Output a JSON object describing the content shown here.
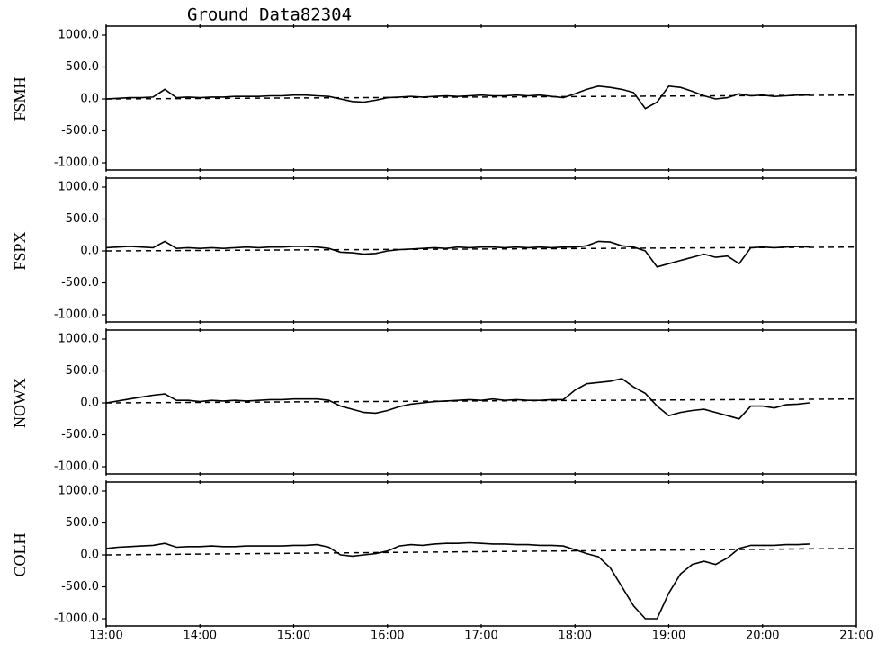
{
  "chart_data": [
    {
      "type": "line",
      "title": "Ground Data82304",
      "ylabel": "FSMH",
      "x": [
        13,
        13.125,
        13.25,
        13.375,
        13.5,
        13.625,
        13.75,
        13.875,
        14,
        14.125,
        14.25,
        14.375,
        14.5,
        14.625,
        14.75,
        14.875,
        15,
        15.125,
        15.25,
        15.375,
        15.5,
        15.625,
        15.75,
        15.875,
        16,
        16.125,
        16.25,
        16.375,
        16.5,
        16.625,
        16.75,
        16.875,
        17,
        17.125,
        17.25,
        17.375,
        17.5,
        17.625,
        17.75,
        17.875,
        18,
        18.125,
        18.25,
        18.375,
        18.5,
        18.625,
        18.75,
        18.875,
        19,
        19.125,
        19.25,
        19.375,
        19.5,
        19.625,
        19.75,
        19.875,
        20,
        20.125,
        20.25,
        20.375,
        20.5
      ],
      "values": [
        0,
        10,
        20,
        20,
        30,
        150,
        20,
        30,
        20,
        30,
        30,
        40,
        40,
        40,
        50,
        50,
        60,
        60,
        50,
        40,
        0,
        -40,
        -50,
        -20,
        20,
        30,
        40,
        30,
        40,
        50,
        40,
        50,
        60,
        50,
        50,
        60,
        50,
        60,
        40,
        20,
        80,
        150,
        200,
        180,
        150,
        100,
        -150,
        -50,
        200,
        180,
        120,
        50,
        0,
        20,
        80,
        50,
        60,
        40,
        50,
        60,
        60
      ],
      "baseline": {
        "x": [
          13,
          21
        ],
        "values": [
          0,
          60
        ]
      },
      "xlim": [
        13,
        21
      ],
      "ylim": [
        -1000,
        1000
      ],
      "yticks": [
        {
          "value": -1000,
          "label": "-1000.0"
        },
        {
          "value": -500,
          "label": "-500.0"
        },
        {
          "value": 0,
          "label": "0.0"
        },
        {
          "value": 500,
          "label": "500.0"
        },
        {
          "value": 1000,
          "label": "1000.0"
        }
      ],
      "color": "#000000"
    },
    {
      "type": "line",
      "ylabel": "FSPX",
      "x": [
        13,
        13.125,
        13.25,
        13.375,
        13.5,
        13.625,
        13.75,
        13.875,
        14,
        14.125,
        14.25,
        14.375,
        14.5,
        14.625,
        14.75,
        14.875,
        15,
        15.125,
        15.25,
        15.375,
        15.5,
        15.625,
        15.75,
        15.875,
        16,
        16.125,
        16.25,
        16.375,
        16.5,
        16.625,
        16.75,
        16.875,
        17,
        17.125,
        17.25,
        17.375,
        17.5,
        17.625,
        17.75,
        17.875,
        18,
        18.125,
        18.25,
        18.375,
        18.5,
        18.625,
        18.75,
        18.875,
        19,
        19.125,
        19.25,
        19.375,
        19.5,
        19.625,
        19.75,
        19.875,
        20,
        20.125,
        20.25,
        20.375,
        20.5
      ],
      "values": [
        50,
        60,
        70,
        60,
        50,
        150,
        40,
        50,
        40,
        50,
        40,
        50,
        60,
        50,
        60,
        60,
        70,
        70,
        60,
        40,
        -20,
        -30,
        -50,
        -40,
        0,
        20,
        30,
        40,
        50,
        40,
        60,
        50,
        60,
        60,
        50,
        60,
        50,
        60,
        50,
        60,
        60,
        80,
        150,
        140,
        80,
        60,
        0,
        -250,
        -200,
        -150,
        -100,
        -50,
        -100,
        -80,
        -200,
        50,
        60,
        50,
        60,
        70,
        60
      ],
      "baseline": {
        "x": [
          13,
          21
        ],
        "values": [
          0,
          60
        ]
      },
      "xlim": [
        13,
        21
      ],
      "ylim": [
        -1000,
        1000
      ],
      "yticks": [
        {
          "value": -1000,
          "label": "-1000.0"
        },
        {
          "value": -500,
          "label": "-500.0"
        },
        {
          "value": 0,
          "label": "0.0"
        },
        {
          "value": 500,
          "label": "500.0"
        },
        {
          "value": 1000,
          "label": "1000.0"
        }
      ],
      "color": "#000000"
    },
    {
      "type": "line",
      "ylabel": "NOWX",
      "x": [
        13,
        13.125,
        13.25,
        13.375,
        13.5,
        13.625,
        13.75,
        13.875,
        14,
        14.125,
        14.25,
        14.375,
        14.5,
        14.625,
        14.75,
        14.875,
        15,
        15.125,
        15.25,
        15.375,
        15.5,
        15.625,
        15.75,
        15.875,
        16,
        16.125,
        16.25,
        16.375,
        16.5,
        16.625,
        16.75,
        16.875,
        17,
        17.125,
        17.25,
        17.375,
        17.5,
        17.625,
        17.75,
        17.875,
        18,
        18.125,
        18.25,
        18.375,
        18.5,
        18.625,
        18.75,
        18.875,
        19,
        19.125,
        19.25,
        19.375,
        19.5,
        19.625,
        19.75,
        19.875,
        20,
        20.125,
        20.25,
        20.375,
        20.5
      ],
      "values": [
        0,
        30,
        60,
        90,
        120,
        140,
        40,
        40,
        20,
        40,
        30,
        40,
        30,
        40,
        50,
        50,
        60,
        60,
        60,
        40,
        -50,
        -100,
        -150,
        -160,
        -120,
        -60,
        -20,
        0,
        20,
        30,
        40,
        50,
        40,
        60,
        40,
        50,
        40,
        40,
        50,
        50,
        200,
        300,
        320,
        340,
        380,
        250,
        150,
        -50,
        -200,
        -150,
        -120,
        -100,
        -150,
        -200,
        -250,
        -50,
        -50,
        -80,
        -30,
        -20,
        0
      ],
      "baseline": {
        "x": [
          13,
          21
        ],
        "values": [
          0,
          60
        ]
      },
      "xlim": [
        13,
        21
      ],
      "ylim": [
        -1000,
        1000
      ],
      "yticks": [
        {
          "value": -1000,
          "label": "-1000.0"
        },
        {
          "value": -500,
          "label": "-500.0"
        },
        {
          "value": 0,
          "label": "0.0"
        },
        {
          "value": 500,
          "label": "500.0"
        },
        {
          "value": 1000,
          "label": "1000.0"
        }
      ],
      "color": "#000000"
    },
    {
      "type": "line",
      "ylabel": "COLH",
      "x": [
        13,
        13.125,
        13.25,
        13.375,
        13.5,
        13.625,
        13.75,
        13.875,
        14,
        14.125,
        14.25,
        14.375,
        14.5,
        14.625,
        14.75,
        14.875,
        15,
        15.125,
        15.25,
        15.375,
        15.5,
        15.625,
        15.75,
        15.875,
        16,
        16.125,
        16.25,
        16.375,
        16.5,
        16.625,
        16.75,
        16.875,
        17,
        17.125,
        17.25,
        17.375,
        17.5,
        17.625,
        17.75,
        17.875,
        18,
        18.125,
        18.25,
        18.375,
        18.5,
        18.625,
        18.75,
        18.875,
        19,
        19.125,
        19.25,
        19.375,
        19.5,
        19.625,
        19.75,
        19.875,
        20,
        20.125,
        20.25,
        20.375,
        20.5
      ],
      "values": [
        100,
        120,
        130,
        140,
        150,
        180,
        120,
        130,
        130,
        140,
        130,
        130,
        140,
        140,
        140,
        140,
        150,
        150,
        160,
        120,
        0,
        -20,
        0,
        20,
        60,
        140,
        160,
        150,
        170,
        180,
        180,
        190,
        180,
        170,
        170,
        160,
        160,
        150,
        150,
        140,
        80,
        20,
        -30,
        -200,
        -500,
        -800,
        -1000,
        -1000,
        -600,
        -300,
        -150,
        -100,
        -150,
        -50,
        100,
        150,
        150,
        150,
        160,
        160,
        170
      ],
      "baseline": {
        "x": [
          13,
          21
        ],
        "values": [
          0,
          100
        ]
      },
      "xlim": [
        13,
        21
      ],
      "ylim": [
        -1000,
        1000
      ],
      "yticks": [
        {
          "value": -1000,
          "label": "-1000.0"
        },
        {
          "value": -500,
          "label": "-500.0"
        },
        {
          "value": 0,
          "label": "0.0"
        },
        {
          "value": 500,
          "label": "500.0"
        },
        {
          "value": 1000,
          "label": "1000.0"
        }
      ],
      "xticks": [
        {
          "value": 13,
          "label": "13:00"
        },
        {
          "value": 14,
          "label": "14:00"
        },
        {
          "value": 15,
          "label": "15:00"
        },
        {
          "value": 16,
          "label": "16:00"
        },
        {
          "value": 17,
          "label": "17:00"
        },
        {
          "value": 18,
          "label": "18:00"
        },
        {
          "value": 19,
          "label": "19:00"
        },
        {
          "value": 20,
          "label": "20:00"
        },
        {
          "value": 21,
          "label": "21:00"
        }
      ],
      "color": "#000000"
    }
  ]
}
